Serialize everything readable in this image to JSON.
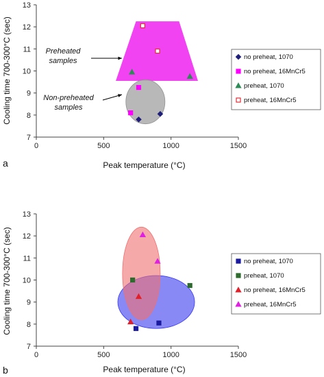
{
  "chart_data": [
    {
      "type": "scatter",
      "panel_label": "a",
      "xlabel": "Peak temperature (°C)",
      "ylabel": "Cooling time 700-300°C (sec)",
      "xlim": [
        0,
        1500
      ],
      "ylim": [
        7,
        13
      ],
      "xticks": [
        0,
        500,
        1000,
        1500
      ],
      "yticks": [
        7,
        8,
        9,
        10,
        11,
        12,
        13
      ],
      "grid": false,
      "legend_position": "right",
      "series": [
        {
          "name": "no preheat, 1070",
          "marker": "diamond",
          "color": "#1f1f7a",
          "filled": true,
          "points": [
            [
              760,
              7.8
            ],
            [
              920,
              8.05
            ]
          ]
        },
        {
          "name": "no preheat, 16MnCr5",
          "marker": "square",
          "color": "#ff00ff",
          "filled": true,
          "points": [
            [
              700,
              8.1
            ],
            [
              760,
              9.25
            ]
          ]
        },
        {
          "name": "preheat, 1070",
          "marker": "triangle",
          "color": "#2e8b57",
          "filled": true,
          "points": [
            [
              710,
              9.95
            ],
            [
              1140,
              9.75
            ]
          ]
        },
        {
          "name": "preheat, 16MnCr5",
          "marker": "square",
          "color": "#e0303a",
          "filled": false,
          "points": [
            [
              790,
              12.05
            ],
            [
              900,
              10.9
            ]
          ]
        }
      ],
      "annotations": [
        {
          "text_lines": [
            "Preheated",
            "samples"
          ]
        },
        {
          "text_lines": [
            "Non-preheated",
            "samples"
          ]
        }
      ],
      "regions": [
        {
          "shape": "trapezoid",
          "color": "#ee22ee",
          "top_y": 12.25,
          "bottom_y": 9.55,
          "top_x": [
            740,
            1060
          ],
          "bottom_x": [
            590,
            1200
          ]
        },
        {
          "shape": "ellipse",
          "color": "#b0b0b0",
          "cx": 810,
          "cy": 8.6,
          "rx": 145,
          "ry": 1.0
        }
      ]
    },
    {
      "type": "scatter",
      "panel_label": "b",
      "xlabel": "Peak temperature (°C)",
      "ylabel": "Cooling time 700-300°C (sec)",
      "xlim": [
        0,
        1500
      ],
      "ylim": [
        7,
        13
      ],
      "xticks": [
        0,
        500,
        1000,
        1500
      ],
      "yticks": [
        7,
        8,
        9,
        10,
        11,
        12,
        13
      ],
      "grid": false,
      "legend_position": "right",
      "series": [
        {
          "name": "no preheat, 1070",
          "marker": "square",
          "color": "#1a1aa0",
          "filled": true,
          "points": [
            [
              740,
              7.8
            ],
            [
              910,
              8.05
            ]
          ]
        },
        {
          "name": "preheat, 1070",
          "marker": "square",
          "color": "#2e6b2e",
          "filled": true,
          "points": [
            [
              715,
              10.0
            ],
            [
              1140,
              9.75
            ]
          ]
        },
        {
          "name": "no preheat, 16MnCr5",
          "marker": "triangle",
          "color": "#e0202a",
          "filled": true,
          "points": [
            [
              700,
              8.1
            ],
            [
              760,
              9.25
            ]
          ]
        },
        {
          "name": "preheat, 16MnCr5",
          "marker": "triangle",
          "color": "#e020e0",
          "filled": true,
          "points": [
            [
              790,
              12.05
            ],
            [
              900,
              10.85
            ]
          ]
        }
      ],
      "regions": [
        {
          "shape": "ellipse",
          "color": "#3a3af0",
          "cx": 890,
          "cy": 9.0,
          "rx": 285,
          "ry": 1.2
        },
        {
          "shape": "ellipse",
          "color": "#f07070",
          "cx": 780,
          "cy": 10.3,
          "rx": 140,
          "ry": 2.1
        }
      ]
    }
  ]
}
